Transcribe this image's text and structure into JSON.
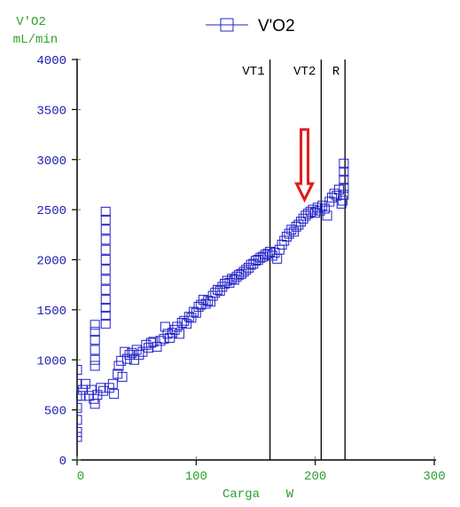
{
  "chart_data": {
    "type": "scatter",
    "title": "",
    "legend": {
      "label": "V'O2",
      "position": "top-center"
    },
    "ylabel_line1": "V'O2",
    "ylabel_line2": "mL/min",
    "xlabel_name": "Carga",
    "xlabel_unit": "W",
    "xlim": [
      0,
      300
    ],
    "ylim": [
      0,
      4000
    ],
    "x_ticks": [
      0,
      100,
      200,
      300
    ],
    "y_ticks": [
      0,
      500,
      1000,
      1500,
      2000,
      2500,
      3000,
      3500,
      4000
    ],
    "grid": false,
    "vertical_lines": [
      {
        "label": "VT1",
        "x": 162
      },
      {
        "label": "VT2",
        "x": 205
      },
      {
        "label": "R",
        "x": 225
      }
    ],
    "annotation_arrow": {
      "x": 191,
      "y_from": 3300,
      "y_to": 2600,
      "color": "#dd1c1c"
    },
    "colors": {
      "series": "#2323c8",
      "axis_labels": "#2b9f2b",
      "y_ticks": "#2020b0",
      "lines": "#000000"
    },
    "series": [
      {
        "name": "V'O2",
        "marker": "square",
        "points": [
          [
            0,
            230
          ],
          [
            0,
            280
          ],
          [
            0,
            400
          ],
          [
            0,
            520
          ],
          [
            0,
            640
          ],
          [
            0,
            760
          ],
          [
            0,
            900
          ],
          [
            3,
            640
          ],
          [
            5,
            700
          ],
          [
            7,
            760
          ],
          [
            10,
            640
          ],
          [
            12,
            700
          ],
          [
            14,
            610
          ],
          [
            15,
            560
          ],
          [
            15,
            940
          ],
          [
            15,
            1000
          ],
          [
            15,
            1100
          ],
          [
            15,
            1200
          ],
          [
            15,
            1280
          ],
          [
            15,
            1350
          ],
          [
            17,
            650
          ],
          [
            20,
            720
          ],
          [
            22,
            690
          ],
          [
            24,
            1360
          ],
          [
            24,
            1440
          ],
          [
            24,
            1520
          ],
          [
            24,
            1600
          ],
          [
            24,
            1700
          ],
          [
            24,
            1800
          ],
          [
            24,
            1900
          ],
          [
            24,
            2000
          ],
          [
            24,
            2100
          ],
          [
            24,
            2200
          ],
          [
            24,
            2300
          ],
          [
            24,
            2400
          ],
          [
            24,
            2480
          ],
          [
            27,
            720
          ],
          [
            30,
            760
          ],
          [
            31,
            660
          ],
          [
            34,
            860
          ],
          [
            35,
            940
          ],
          [
            37,
            990
          ],
          [
            38,
            830
          ],
          [
            40,
            1080
          ],
          [
            42,
            1010
          ],
          [
            44,
            1050
          ],
          [
            46,
            1070
          ],
          [
            48,
            1000
          ],
          [
            50,
            1100
          ],
          [
            52,
            1050
          ],
          [
            55,
            1080
          ],
          [
            58,
            1150
          ],
          [
            60,
            1120
          ],
          [
            62,
            1170
          ],
          [
            64,
            1180
          ],
          [
            67,
            1130
          ],
          [
            70,
            1190
          ],
          [
            73,
            1210
          ],
          [
            74,
            1330
          ],
          [
            76,
            1260
          ],
          [
            78,
            1220
          ],
          [
            80,
            1270
          ],
          [
            82,
            1300
          ],
          [
            84,
            1330
          ],
          [
            86,
            1260
          ],
          [
            88,
            1370
          ],
          [
            90,
            1390
          ],
          [
            92,
            1360
          ],
          [
            94,
            1430
          ],
          [
            96,
            1420
          ],
          [
            98,
            1480
          ],
          [
            100,
            1470
          ],
          [
            102,
            1530
          ],
          [
            104,
            1550
          ],
          [
            106,
            1600
          ],
          [
            108,
            1560
          ],
          [
            110,
            1590
          ],
          [
            112,
            1580
          ],
          [
            114,
            1640
          ],
          [
            116,
            1670
          ],
          [
            118,
            1700
          ],
          [
            120,
            1690
          ],
          [
            122,
            1730
          ],
          [
            124,
            1760
          ],
          [
            126,
            1790
          ],
          [
            128,
            1770
          ],
          [
            130,
            1810
          ],
          [
            132,
            1800
          ],
          [
            134,
            1830
          ],
          [
            136,
            1850
          ],
          [
            138,
            1860
          ],
          [
            140,
            1880
          ],
          [
            142,
            1900
          ],
          [
            144,
            1920
          ],
          [
            146,
            1950
          ],
          [
            148,
            1960
          ],
          [
            150,
            1990
          ],
          [
            152,
            2000
          ],
          [
            154,
            2020
          ],
          [
            156,
            2030
          ],
          [
            158,
            2050
          ],
          [
            160,
            2060
          ],
          [
            162,
            2080
          ],
          [
            164,
            2040
          ],
          [
            166,
            2070
          ],
          [
            168,
            2010
          ],
          [
            170,
            2100
          ],
          [
            172,
            2150
          ],
          [
            174,
            2190
          ],
          [
            176,
            2230
          ],
          [
            178,
            2260
          ],
          [
            180,
            2300
          ],
          [
            182,
            2280
          ],
          [
            184,
            2330
          ],
          [
            186,
            2350
          ],
          [
            188,
            2380
          ],
          [
            190,
            2410
          ],
          [
            192,
            2440
          ],
          [
            194,
            2460
          ],
          [
            196,
            2480
          ],
          [
            198,
            2500
          ],
          [
            200,
            2470
          ],
          [
            202,
            2520
          ],
          [
            204,
            2490
          ],
          [
            206,
            2540
          ],
          [
            208,
            2510
          ],
          [
            210,
            2440
          ],
          [
            212,
            2580
          ],
          [
            214,
            2620
          ],
          [
            216,
            2660
          ],
          [
            218,
            2640
          ],
          [
            220,
            2700
          ],
          [
            222,
            2560
          ],
          [
            223,
            2590
          ],
          [
            224,
            2650
          ],
          [
            224,
            2720
          ],
          [
            224,
            2800
          ],
          [
            224,
            2880
          ],
          [
            224,
            2960
          ]
        ]
      }
    ]
  }
}
